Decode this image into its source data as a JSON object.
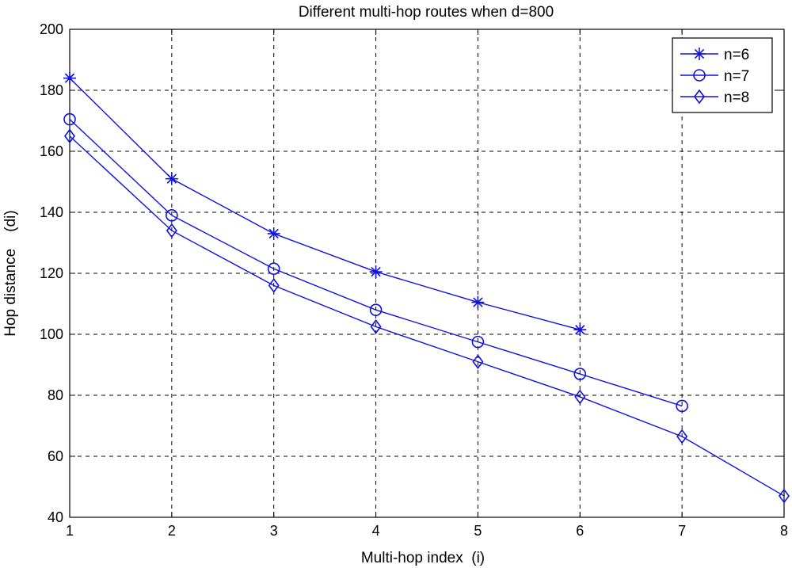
{
  "chart_data": {
    "type": "line",
    "title": "Different multi-hop routes when d=800",
    "xlabel": "Multi-hop index  (i)",
    "ylabel": "Hop distance    (di)",
    "xlim": [
      1,
      8
    ],
    "ylim": [
      40,
      200
    ],
    "x_ticks": [
      1,
      2,
      3,
      4,
      5,
      6,
      7,
      8
    ],
    "y_ticks": [
      40,
      60,
      80,
      100,
      120,
      140,
      160,
      180,
      200
    ],
    "grid": true,
    "legend_position": "top-right",
    "line_color": "#1010e0",
    "series": [
      {
        "name": "n=6",
        "marker": "star",
        "x": [
          1,
          2,
          3,
          4,
          5,
          6
        ],
        "values": [
          184,
          151,
          133,
          120.5,
          110.5,
          101.5
        ]
      },
      {
        "name": "n=7",
        "marker": "circle",
        "x": [
          1,
          2,
          3,
          4,
          5,
          6,
          7
        ],
        "values": [
          170.5,
          139,
          121.5,
          108,
          97.5,
          87,
          76.5
        ]
      },
      {
        "name": "n=8",
        "marker": "diamond",
        "x": [
          1,
          2,
          3,
          4,
          5,
          6,
          7,
          8
        ],
        "values": [
          165,
          134,
          116,
          102.5,
          91,
          79.5,
          66.5,
          47
        ]
      }
    ]
  }
}
